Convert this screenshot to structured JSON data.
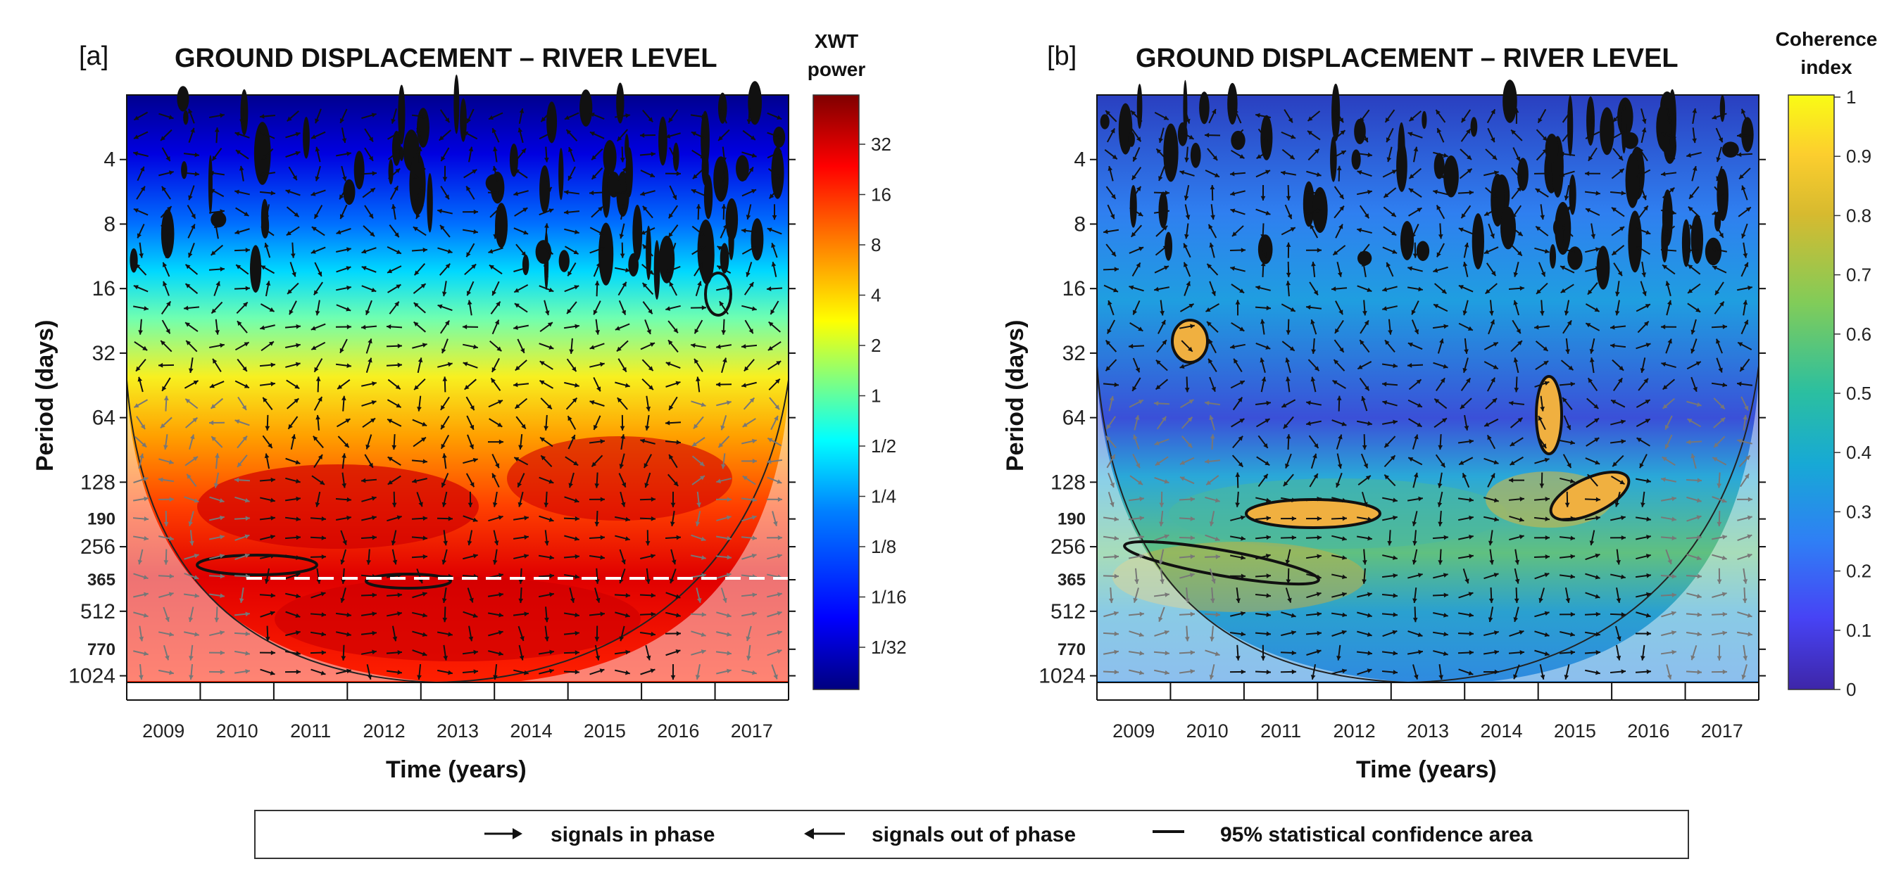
{
  "chart_data": [
    {
      "type": "heatmap",
      "panel": "[a]",
      "title": "GROUND DISPLACEMENT – RIVER LEVEL",
      "xlabel": "Time (years)",
      "ylabel": "Period (days)",
      "x_ticks": [
        "2009",
        "2010",
        "2011",
        "2012",
        "2013",
        "2014",
        "2015",
        "2016",
        "2017"
      ],
      "y_ticks_major": [
        "4",
        "8",
        "16",
        "32",
        "64",
        "128",
        "256",
        "512",
        "1024"
      ],
      "y_ticks_minor": [
        "190",
        "365",
        "770"
      ],
      "colorbar_title": [
        "XWT",
        "power"
      ],
      "colorbar_ticks": [
        "32",
        "16",
        "8",
        "4",
        "2",
        "1",
        "1/2",
        "1/4",
        "1/8",
        "1/16",
        "1/32"
      ],
      "reference_line_period": "365",
      "colormap": [
        "#00007f",
        "#0000ff",
        "#0080ff",
        "#00ffff",
        "#80ff80",
        "#ffff00",
        "#ff8000",
        "#ff0000",
        "#7f0000"
      ]
    },
    {
      "type": "heatmap",
      "panel": "[b]",
      "title": "GROUND DISPLACEMENT – RIVER LEVEL",
      "xlabel": "Time (years)",
      "ylabel": "Period (days)",
      "x_ticks": [
        "2009",
        "2010",
        "2011",
        "2012",
        "2013",
        "2014",
        "2015",
        "2016",
        "2017"
      ],
      "y_ticks_major": [
        "4",
        "8",
        "16",
        "32",
        "64",
        "128",
        "256",
        "512",
        "1024"
      ],
      "y_ticks_minor": [
        "190",
        "365",
        "770"
      ],
      "colorbar_title": [
        "Coherence",
        "index"
      ],
      "colorbar_ticks": [
        "1",
        "0.9",
        "0.8",
        "0.7",
        "0.6",
        "0.5",
        "0.4",
        "0.3",
        "0.2",
        "0.1",
        "0"
      ],
      "colorbar_range": [
        0,
        1
      ],
      "colormap": [
        "#3e26a8",
        "#4743f5",
        "#2f7ff5",
        "#17a9d5",
        "#2bbfa0",
        "#81cc59",
        "#d7ba2f",
        "#fcce2e",
        "#f9fb15"
      ]
    }
  ],
  "legend": {
    "in_phase": "signals in phase",
    "out_phase": "signals out of phase",
    "confidence": "95% statistical confidence area"
  }
}
